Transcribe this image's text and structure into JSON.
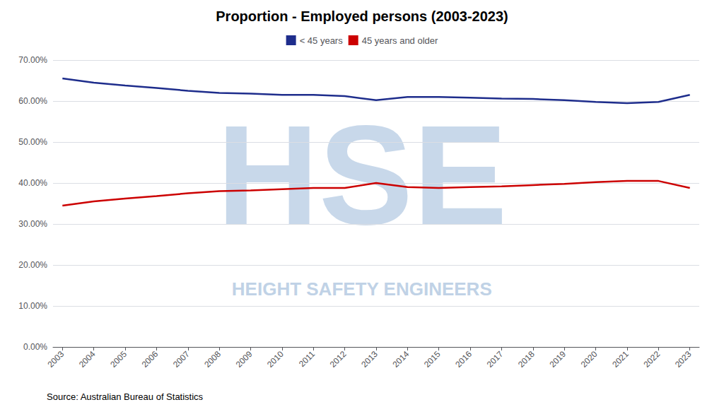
{
  "chart_data": {
    "type": "line",
    "title": "Proportion - Employed persons (2003-2023)",
    "x": [
      2003,
      2004,
      2005,
      2006,
      2007,
      2008,
      2009,
      2010,
      2011,
      2012,
      2013,
      2014,
      2015,
      2016,
      2017,
      2018,
      2019,
      2020,
      2021,
      2022,
      2023
    ],
    "series": [
      {
        "name": "< 45 years",
        "color": "#1e2d8c",
        "values": [
          65.5,
          64.5,
          63.8,
          63.2,
          62.5,
          62.0,
          61.8,
          61.5,
          61.5,
          61.2,
          60.2,
          61.0,
          61.0,
          60.8,
          60.6,
          60.5,
          60.2,
          59.8,
          59.5,
          59.8,
          61.5
        ]
      },
      {
        "name": "45 years and older",
        "color": "#cc0000",
        "values": [
          34.5,
          35.5,
          36.2,
          36.8,
          37.5,
          38.0,
          38.2,
          38.5,
          38.8,
          38.8,
          40.0,
          39.0,
          38.8,
          39.0,
          39.2,
          39.5,
          39.8,
          40.2,
          40.5,
          40.5,
          38.8
        ]
      }
    ],
    "xlim": [
      2002.7,
      2023.3
    ],
    "xticks": [
      2003,
      2004,
      2005,
      2006,
      2007,
      2008,
      2009,
      2010,
      2011,
      2012,
      2013,
      2014,
      2015,
      2016,
      2017,
      2018,
      2019,
      2020,
      2021,
      2022,
      2023
    ],
    "ylim": [
      0,
      70
    ],
    "yticks": [
      {
        "value": 0,
        "label": "0.00%"
      },
      {
        "value": 10,
        "label": "10.00%"
      },
      {
        "value": 20,
        "label": "20.00%"
      },
      {
        "value": 30,
        "label": "30.00%"
      },
      {
        "value": 40,
        "label": "40.00%"
      },
      {
        "value": 50,
        "label": "50.00%"
      },
      {
        "value": 60,
        "label": "60.00%"
      },
      {
        "value": 70,
        "label": "70.00%"
      }
    ],
    "grid": true,
    "legend": "top",
    "annotations": [
      {
        "text": "HSE",
        "color": "#c8d8ea"
      },
      {
        "text": "HEIGHT SAFETY ENGINEERS",
        "color": "#c0d2e6"
      },
      {
        "text": "Source: Australian Bureau of Statistics"
      }
    ]
  }
}
